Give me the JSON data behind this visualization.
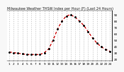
{
  "title": "Milwaukee Weather THSW Index per Hour (F) (Last 24 Hours)",
  "y_ticks": [
    20,
    30,
    40,
    50,
    60,
    70,
    80,
    90
  ],
  "ylim": [
    17,
    97
  ],
  "xlim": [
    -0.5,
    23.5
  ],
  "line_color": "#cc0000",
  "dot_color": "#000000",
  "background_color": "#f8f8f8",
  "plot_bg": "#ffffff",
  "grid_color": "#999999",
  "hours": [
    0,
    1,
    2,
    3,
    4,
    5,
    6,
    7,
    8,
    9,
    10,
    11,
    12,
    13,
    14,
    15,
    16,
    17,
    18,
    19,
    20,
    21,
    22,
    23
  ],
  "values": [
    31,
    30,
    29,
    28,
    27,
    27,
    27,
    27,
    30,
    36,
    50,
    67,
    80,
    88,
    90,
    86,
    80,
    73,
    63,
    53,
    45,
    39,
    35,
    32
  ],
  "x_tick_positions": [
    0,
    1,
    2,
    3,
    4,
    5,
    6,
    7,
    8,
    9,
    10,
    11,
    12,
    13,
    14,
    15,
    16,
    17,
    18,
    19,
    20,
    21,
    22,
    23
  ],
  "x_tick_labels": [
    "1",
    "2",
    "3",
    "4",
    "5",
    "6",
    "7",
    "8",
    "9",
    "10",
    "11",
    "12",
    "13",
    "14",
    "15",
    "16",
    "17",
    "18",
    "19",
    "20",
    "21",
    "22",
    "23",
    "24"
  ],
  "title_fontsize": 3.5,
  "tick_fontsize": 3.0,
  "linewidth": 0.9,
  "markersize": 1.2,
  "grid_linewidth": 0.4,
  "right_border_color": "#333333",
  "border_linewidth": 0.8
}
